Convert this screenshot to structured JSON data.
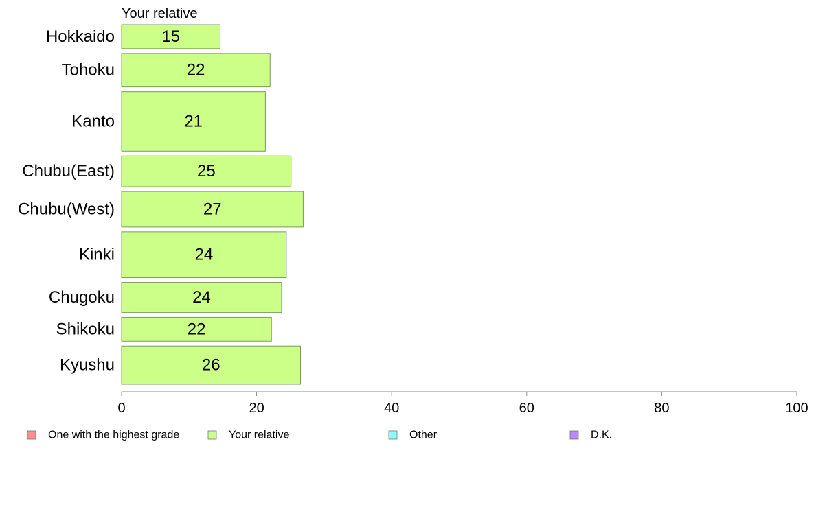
{
  "chart_data": {
    "type": "bar",
    "orientation": "horizontal",
    "series_title": "Your relative",
    "categories": [
      "Hokkaido",
      "Tohoku",
      "Kanto",
      "Chubu(East)",
      "Chubu(West)",
      "Kinki",
      "Chugoku",
      "Shikoku",
      "Kyushu"
    ],
    "series": [
      {
        "name": "Your relative",
        "values": [
          14.6,
          22.0,
          21.3,
          25.1,
          26.9,
          24.4,
          23.7,
          22.2,
          26.5
        ],
        "labels": [
          "15",
          "22",
          "21",
          "25",
          "27",
          "24",
          "24",
          "22",
          "26"
        ]
      }
    ],
    "category_weights": [
      35,
      49,
      87,
      45,
      52,
      67,
      44,
      35,
      56
    ],
    "bar_color": "#ccff88",
    "bar_stroke": "#7a9a5a",
    "xlim": [
      0,
      100
    ],
    "xticks": [
      "0",
      "20",
      "40",
      "60",
      "80",
      "100"
    ],
    "legend": {
      "position": "bottom",
      "items": [
        {
          "label": "One with the highest grade",
          "color": "#ff8f8f"
        },
        {
          "label": "Your relative",
          "color": "#ccff88"
        },
        {
          "label": "Other",
          "color": "#88ffff"
        },
        {
          "label": "D.K.",
          "color": "#bb88ff"
        }
      ]
    }
  }
}
